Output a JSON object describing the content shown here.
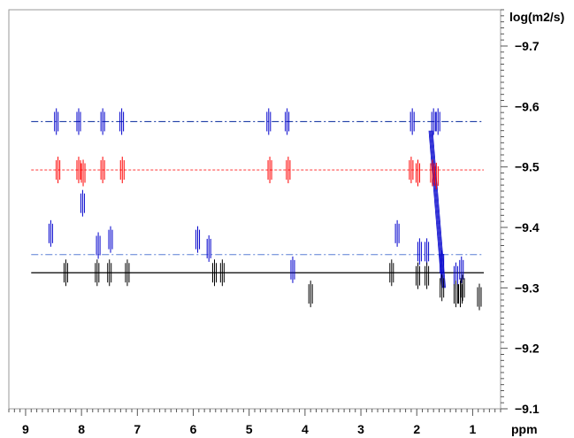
{
  "chart_data": {
    "type": "scatter",
    "title": "",
    "xlabel": "ppm",
    "ylabel": "log(m2/s)",
    "x_reversed": true,
    "xlim": [
      9.3,
      0.5
    ],
    "ylim": [
      -9.1,
      -9.76
    ],
    "x_ticks": [
      9,
      8,
      7,
      6,
      5,
      4,
      3,
      2,
      1
    ],
    "y_ticks": [
      -9.7,
      -9.6,
      -9.5,
      -9.4,
      -9.3,
      -9.2,
      -9.1
    ],
    "grid": false,
    "legend": "none",
    "reference_lines": [
      {
        "y": -9.575,
        "style": "dash-dot",
        "color": "#1f3fa6",
        "from_x": 8.9,
        "to_x": 0.8
      },
      {
        "y": -9.495,
        "style": "dotted",
        "color": "#ff4d4d",
        "from_x": 8.9,
        "to_x": 0.8
      },
      {
        "y": -9.355,
        "style": "dash-dot",
        "color": "#5a7fd6",
        "from_x": 8.9,
        "to_x": 0.8
      },
      {
        "y": -9.325,
        "style": "solid",
        "color": "#000000",
        "from_x": 8.9,
        "to_x": 0.8
      }
    ],
    "series": [
      {
        "color": "#0000cc",
        "points": [
          {
            "x": 8.45,
            "y": -9.575
          },
          {
            "x": 8.05,
            "y": -9.575
          },
          {
            "x": 7.62,
            "y": -9.575
          },
          {
            "x": 7.28,
            "y": -9.575
          },
          {
            "x": 4.65,
            "y": -9.575
          },
          {
            "x": 4.32,
            "y": -9.575
          },
          {
            "x": 2.08,
            "y": -9.575
          },
          {
            "x": 1.7,
            "y": -9.575
          },
          {
            "x": 1.62,
            "y": -9.575
          },
          {
            "x": 7.98,
            "y": -9.44
          },
          {
            "x": 8.55,
            "y": -9.39
          },
          {
            "x": 7.7,
            "y": -9.37
          },
          {
            "x": 7.48,
            "y": -9.38
          },
          {
            "x": 5.92,
            "y": -9.38
          },
          {
            "x": 5.72,
            "y": -9.365
          },
          {
            "x": 4.22,
            "y": -9.33
          },
          {
            "x": 2.35,
            "y": -9.39
          },
          {
            "x": 1.95,
            "y": -9.36
          },
          {
            "x": 1.82,
            "y": -9.36
          },
          {
            "x": 1.55,
            "y": -9.34
          },
          {
            "x": 1.3,
            "y": -9.32
          },
          {
            "x": 1.2,
            "y": -9.33
          }
        ]
      },
      {
        "color": "#ff0000",
        "points": [
          {
            "x": 8.42,
            "y": -9.495
          },
          {
            "x": 8.05,
            "y": -9.495
          },
          {
            "x": 7.97,
            "y": -9.49
          },
          {
            "x": 7.62,
            "y": -9.495
          },
          {
            "x": 7.27,
            "y": -9.495
          },
          {
            "x": 4.63,
            "y": -9.495
          },
          {
            "x": 4.3,
            "y": -9.495
          },
          {
            "x": 2.1,
            "y": -9.495
          },
          {
            "x": 1.98,
            "y": -9.49
          },
          {
            "x": 1.72,
            "y": -9.49
          },
          {
            "x": 1.65,
            "y": -9.485
          }
        ]
      },
      {
        "color": "#000000",
        "points": [
          {
            "x": 8.28,
            "y": -9.325
          },
          {
            "x": 7.72,
            "y": -9.325
          },
          {
            "x": 7.5,
            "y": -9.325
          },
          {
            "x": 7.18,
            "y": -9.325
          },
          {
            "x": 5.62,
            "y": -9.325
          },
          {
            "x": 5.48,
            "y": -9.325
          },
          {
            "x": 3.9,
            "y": -9.29
          },
          {
            "x": 2.45,
            "y": -9.325
          },
          {
            "x": 1.98,
            "y": -9.32
          },
          {
            "x": 1.82,
            "y": -9.32
          },
          {
            "x": 1.55,
            "y": -9.3
          },
          {
            "x": 1.3,
            "y": -9.29
          },
          {
            "x": 1.22,
            "y": -9.29
          },
          {
            "x": 1.18,
            "y": -9.3
          },
          {
            "x": 0.88,
            "y": -9.285
          }
        ]
      }
    ],
    "diagonal_feature": {
      "color": "#0000cc",
      "from": {
        "x": 1.75,
        "y": -9.56
      },
      "to": {
        "x": 1.52,
        "y": -9.3
      }
    }
  }
}
